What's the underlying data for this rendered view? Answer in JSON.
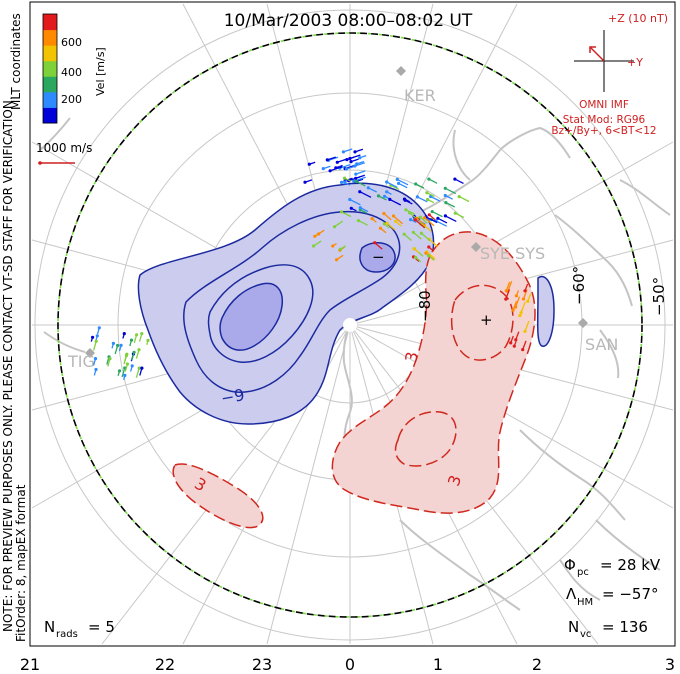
{
  "title": "10/Mar/2003 08:00–08:02 UT",
  "colorbar": {
    "label": "Vel [m/s]",
    "ticks": [
      "600",
      "400",
      "200"
    ],
    "colors": [
      "#0000d8",
      "#2e8bff",
      "#2aa860",
      "#7fd13a",
      "#f2c300",
      "#ff8a00",
      "#e31a1c"
    ]
  },
  "coordinates_label": "MLT coordinates",
  "vector_scale": "1000 m/s",
  "imf": {
    "z_label": "+Z (10 nT)",
    "y_label": "+Y",
    "source": "OMNI IMF",
    "stat_model": "Stat Mod: RG96",
    "condition": "Bz+/By+, 6<BT<12"
  },
  "note": "NOTE: FOR PREVIEW PURPOSES ONLY. PLEASE CONTACT VT-SD STAFF FOR VERIFICATION.",
  "fit_info": "FitOrder: 8, mapEX format",
  "stats": {
    "phi_pc": "= 28 kV",
    "lambda_hm": "= −57°",
    "n_vc": "= 136",
    "n_rads": "= 5"
  },
  "stat_symbols": {
    "phi": "Φ",
    "phi_sub": "pc",
    "lambda": "Λ",
    "lambda_sub": "HM",
    "n_vc": "N",
    "n_vc_sub": "vc",
    "n_rads": "N",
    "n_rads_sub": "rads"
  },
  "latitude_labels": [
    "−80",
    "−60°",
    "−50°"
  ],
  "contour_labels": [
    "−9",
    "3",
    "3",
    "3"
  ],
  "extrema": [
    "−",
    "+"
  ],
  "stations": [
    "KER",
    "SYE SYS",
    "SAN",
    "TIG"
  ],
  "mlt_ticks": [
    "21",
    "22",
    "23",
    "0",
    "1",
    "2",
    "3"
  ]
}
